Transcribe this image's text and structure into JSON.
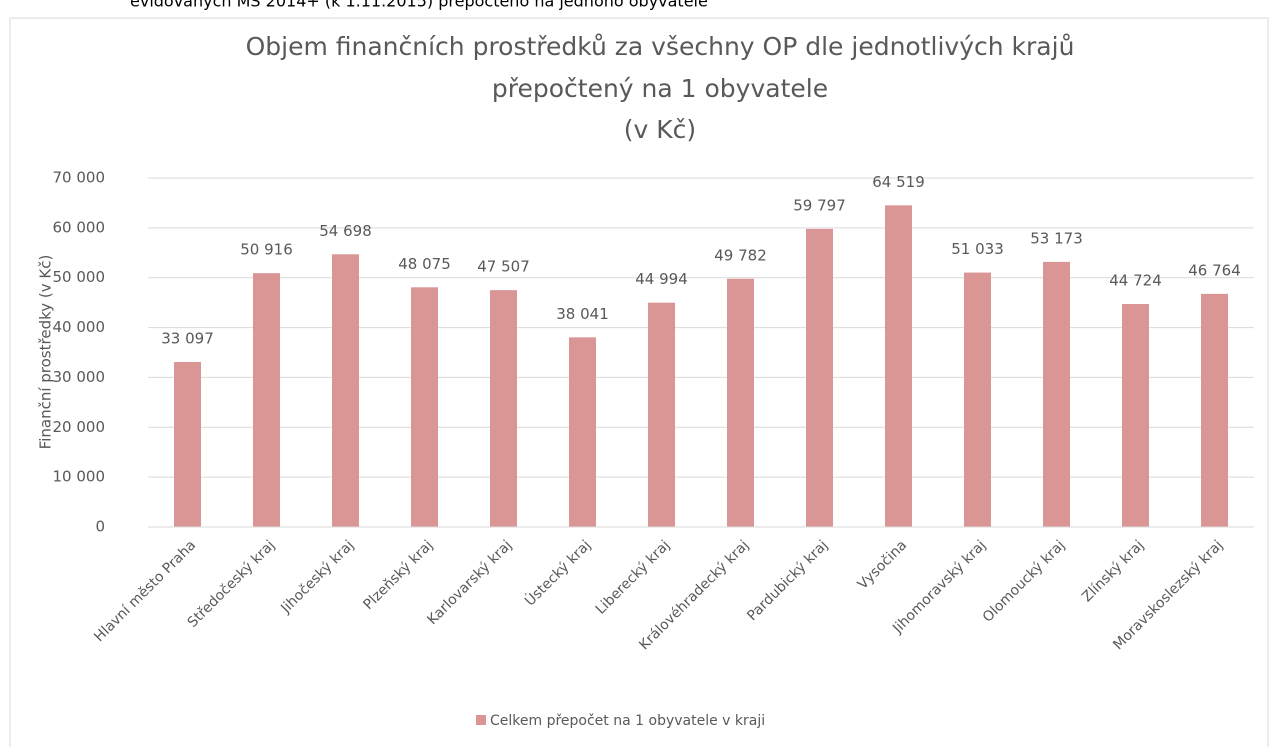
{
  "document": {
    "text": "evidovaných MS 2014+ (k 1.11.2015) přepočteno na jednoho obyvatele"
  },
  "chart_data": {
    "type": "bar",
    "title": [
      "Objem finančních prostředků za všechny OP dle jednotlivých krajů",
      "přepočtený na 1 obyvatele",
      "(v Kč)"
    ],
    "y_label": "Finanční prostředky (v Kč)",
    "categories": [
      "Hlavní město Praha",
      "Středočeský kraj",
      "Jihočeský kraj",
      "Plzeňský kraj",
      "Karlovarský kraj",
      "Ústecký kraj",
      "Liberecký kraj",
      "Královéhradecký kraj",
      "Pardubický kraj",
      "Vysočina",
      "Jihomoravský kraj",
      "Olomoucký kraj",
      "Zlínský kraj",
      "Moravskoslezský kraj"
    ],
    "series": [
      {
        "name": "Celkem přepočet na 1 obyvatele v kraji",
        "color": "#d99694",
        "values": [
          33097,
          50916,
          54698,
          48075,
          47507,
          38041,
          44994,
          49782,
          59797,
          64519,
          51033,
          53173,
          44724,
          46764
        ],
        "value_labels": [
          "33 097",
          "50 916",
          "54 698",
          "48 075",
          "47 507",
          "38 041",
          "44 994",
          "49 782",
          "59 797",
          "64 519",
          "51 033",
          "53 173",
          "44 724",
          "46 764"
        ]
      }
    ],
    "ylim": [
      0,
      70000
    ],
    "yticks": [
      0,
      {
        "value": 10000,
        "label": "10 000"
      },
      {
        "value": 20000,
        "label": "20 000"
      },
      {
        "value": 30000,
        "label": "30 000"
      },
      {
        "value": 40000,
        "label": "40 000"
      },
      {
        "value": 50000,
        "label": "50 000"
      },
      {
        "value": 60000,
        "label": "60 000"
      },
      {
        "value": 70000,
        "label": "70 000"
      }
    ],
    "grid": true,
    "legend": "bottom"
  }
}
